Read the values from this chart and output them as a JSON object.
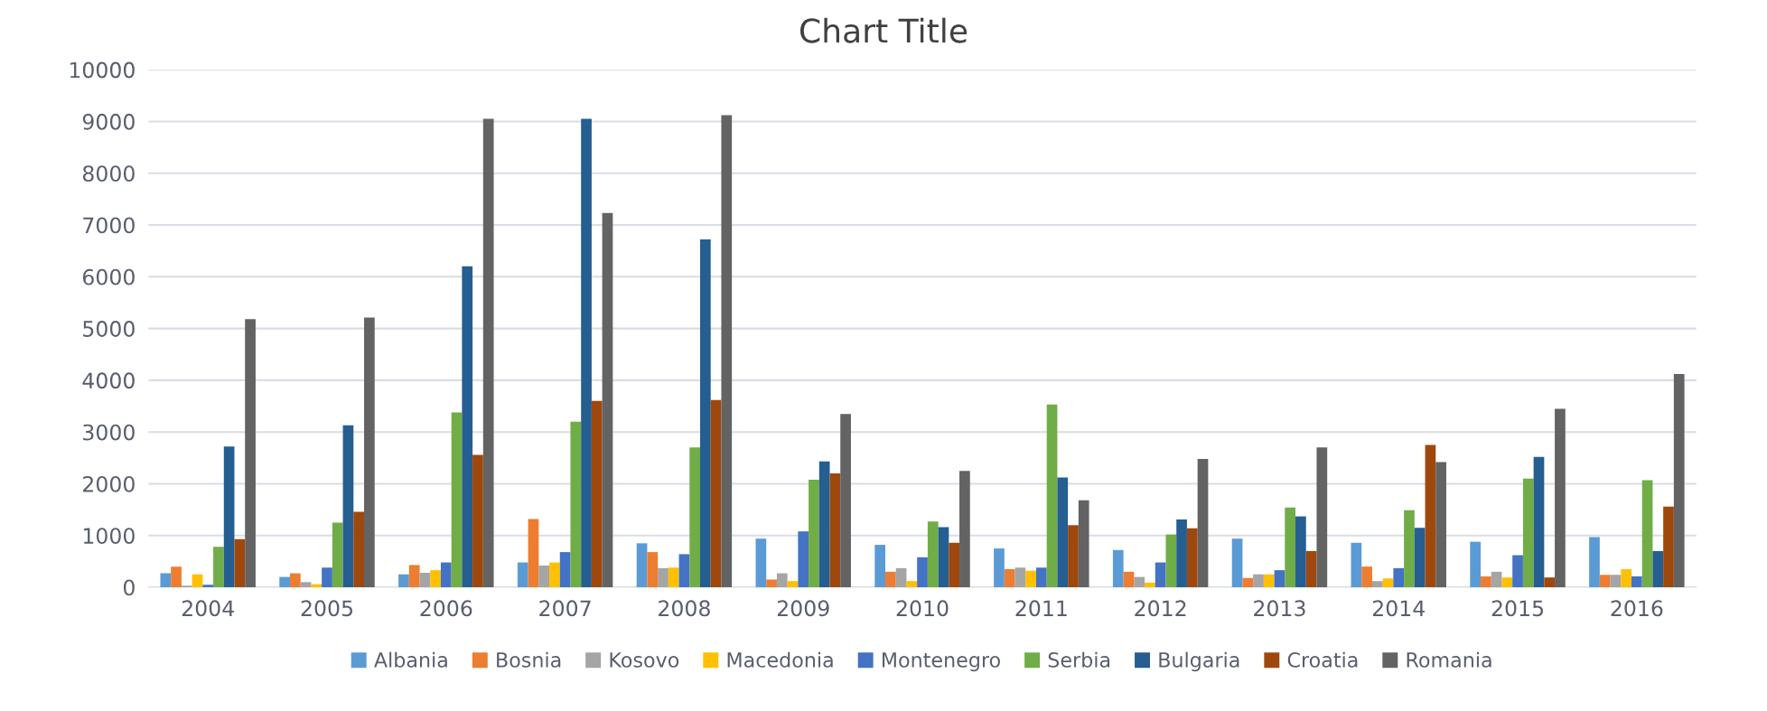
{
  "chart_data": {
    "type": "bar",
    "title": "Chart Title",
    "categories": [
      "2004",
      "2005",
      "2006",
      "2007",
      "2008",
      "2009",
      "2010",
      "2011",
      "2012",
      "2013",
      "2014",
      "2015",
      "2016"
    ],
    "series": [
      {
        "name": "Albania",
        "color": "#5b9bd5",
        "values": [
          270,
          200,
          250,
          480,
          850,
          940,
          820,
          750,
          720,
          940,
          860,
          880,
          970
        ]
      },
      {
        "name": "Bosnia",
        "color": "#ed7d31",
        "values": [
          400,
          270,
          430,
          1320,
          680,
          150,
          300,
          350,
          300,
          180,
          400,
          210,
          240
        ]
      },
      {
        "name": "Kosovo",
        "color": "#a5a5a5",
        "values": [
          30,
          100,
          280,
          420,
          370,
          270,
          370,
          380,
          200,
          250,
          120,
          300,
          240
        ]
      },
      {
        "name": "Macedonia",
        "color": "#ffc000",
        "values": [
          250,
          60,
          330,
          480,
          380,
          120,
          120,
          320,
          90,
          250,
          170,
          190,
          350
        ]
      },
      {
        "name": "Montenegro",
        "color": "#4472c4",
        "values": [
          50,
          380,
          480,
          680,
          640,
          1080,
          580,
          380,
          480,
          330,
          370,
          620,
          210
        ]
      },
      {
        "name": "Serbia",
        "color": "#70ad47",
        "values": [
          780,
          1250,
          3380,
          3200,
          2700,
          2080,
          1270,
          3530,
          1020,
          1540,
          1490,
          2100,
          2070
        ]
      },
      {
        "name": "Bulgaria",
        "color": "#255e91",
        "values": [
          2720,
          3130,
          6200,
          9050,
          6720,
          2430,
          1160,
          2120,
          1310,
          1370,
          1150,
          2520,
          700
        ]
      },
      {
        "name": "Croatia",
        "color": "#9e480e",
        "values": [
          930,
          1460,
          2560,
          3600,
          3620,
          2200,
          860,
          1200,
          1140,
          700,
          2750,
          190,
          1560
        ]
      },
      {
        "name": "Romania",
        "color": "#636363",
        "values": [
          5180,
          5210,
          9050,
          7230,
          9120,
          3350,
          2250,
          1680,
          2480,
          2700,
          2420,
          3450,
          4120
        ]
      }
    ],
    "ylim": [
      0,
      10000
    ],
    "yticks": [
      0,
      1000,
      2000,
      3000,
      4000,
      5000,
      6000,
      7000,
      8000,
      9000,
      10000
    ],
    "grid": "y",
    "legend": "bottom"
  }
}
